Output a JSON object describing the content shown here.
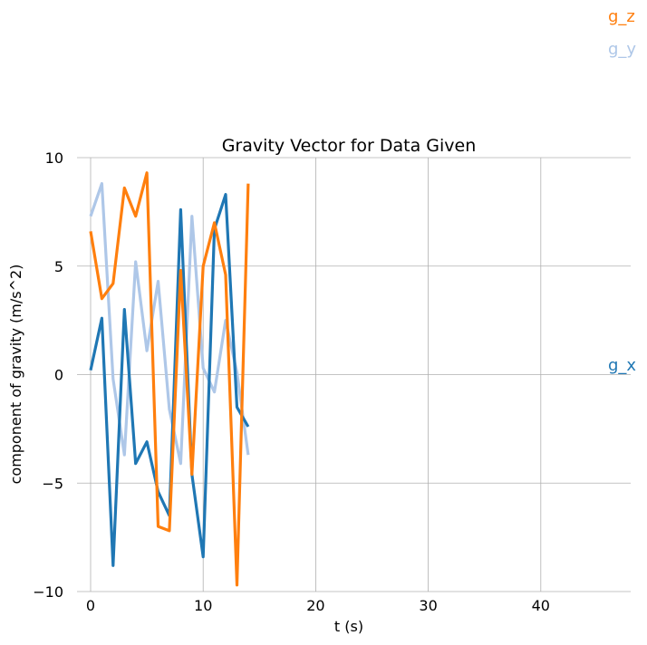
{
  "chart_data": {
    "type": "line",
    "title": "Gravity Vector for Data Given",
    "xlabel": "t (s)",
    "ylabel": "component of gravity (m/s^2)",
    "xlim": [
      -1.2,
      48
    ],
    "ylim": [
      -10,
      10
    ],
    "xticks": [
      0,
      10,
      20,
      30,
      40
    ],
    "yticks": [
      -10,
      -5,
      0,
      5,
      10
    ],
    "ytick_labels": [
      "−10",
      "−5",
      "0",
      "5",
      "10"
    ],
    "grid": true,
    "x": [
      0,
      1,
      2,
      3,
      4,
      5,
      6,
      7,
      8,
      9,
      10,
      11,
      12,
      13,
      14
    ],
    "series": [
      {
        "name": "g_x",
        "color": "#1f77b4",
        "values": [
          0.2,
          2.6,
          -8.8,
          3.0,
          -4.1,
          -3.1,
          -5.4,
          -6.5,
          7.6,
          -4.6,
          -8.4,
          6.7,
          8.3,
          -1.5,
          -2.4
        ]
      },
      {
        "name": "g_y",
        "color": "#aec7e8",
        "values": [
          7.3,
          8.8,
          -0.2,
          -3.7,
          5.2,
          1.1,
          4.3,
          -1.6,
          -4.1,
          7.3,
          0.3,
          -0.8,
          2.5,
          0.1,
          -3.7
        ]
      },
      {
        "name": "g_z",
        "color": "#ff7f0e",
        "values": [
          6.6,
          3.5,
          4.2,
          8.6,
          7.3,
          9.3,
          -7.0,
          -7.2,
          4.8,
          -4.6,
          5.0,
          7.0,
          4.6,
          -9.7,
          8.8
        ]
      }
    ]
  }
}
